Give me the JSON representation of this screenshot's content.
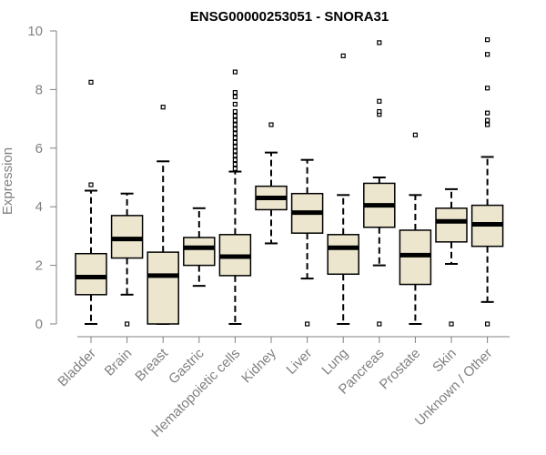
{
  "chart_data": {
    "type": "boxplot",
    "title": "ENSG00000253051 - SNORA31",
    "xlabel": "",
    "ylabel": "Expression",
    "ylim": [
      0,
      10
    ],
    "yticks": [
      "0",
      "2",
      "4",
      "6",
      "8",
      "10"
    ],
    "grid": false,
    "box_color": "#EDE6CF",
    "categories": [
      "Bladder",
      "Brain",
      "Breast",
      "Gastric",
      "Hematopoietic cells",
      "Kidney",
      "Liver",
      "Lung",
      "Pancreas",
      "Prostate",
      "Skin",
      "Unknown / Other"
    ],
    "boxes": [
      {
        "q1": 1.0,
        "median": 1.6,
        "q3": 2.4,
        "whisker_low": 0.0,
        "whisker_high": 4.55,
        "outliers": [
          4.75,
          8.25
        ]
      },
      {
        "q1": 2.25,
        "median": 2.9,
        "q3": 3.7,
        "whisker_low": 1.0,
        "whisker_high": 4.45,
        "outliers": [
          0.0
        ]
      },
      {
        "q1": 0.0,
        "median": 1.65,
        "q3": 2.45,
        "whisker_low": 0.0,
        "whisker_high": 5.55,
        "outliers": [
          7.4
        ]
      },
      {
        "q1": 2.0,
        "median": 2.6,
        "q3": 2.95,
        "whisker_low": 1.3,
        "whisker_high": 3.95,
        "outliers": []
      },
      {
        "q1": 1.65,
        "median": 2.3,
        "q3": 3.05,
        "whisker_low": 0.0,
        "whisker_high": 5.2,
        "outliers": [
          5.3,
          5.45,
          5.6,
          5.75,
          5.9,
          6.05,
          6.2,
          6.35,
          6.5,
          6.65,
          6.8,
          6.95,
          7.1,
          7.25,
          7.5,
          7.75,
          7.9,
          8.6
        ]
      },
      {
        "q1": 3.9,
        "median": 4.3,
        "q3": 4.7,
        "whisker_low": 2.75,
        "whisker_high": 5.85,
        "outliers": [
          6.8
        ]
      },
      {
        "q1": 3.1,
        "median": 3.8,
        "q3": 4.45,
        "whisker_low": 1.55,
        "whisker_high": 5.6,
        "outliers": [
          0.0
        ]
      },
      {
        "q1": 1.7,
        "median": 2.6,
        "q3": 3.05,
        "whisker_low": 0.0,
        "whisker_high": 4.4,
        "outliers": [
          9.15
        ]
      },
      {
        "q1": 3.3,
        "median": 4.05,
        "q3": 4.8,
        "whisker_low": 2.0,
        "whisker_high": 5.0,
        "outliers": [
          0.0,
          7.15,
          7.25,
          7.6,
          9.6
        ]
      },
      {
        "q1": 1.35,
        "median": 2.35,
        "q3": 3.2,
        "whisker_low": 0.0,
        "whisker_high": 4.4,
        "outliers": [
          6.45
        ]
      },
      {
        "q1": 2.8,
        "median": 3.5,
        "q3": 3.95,
        "whisker_low": 2.05,
        "whisker_high": 4.6,
        "outliers": [
          0.0
        ]
      },
      {
        "q1": 2.65,
        "median": 3.4,
        "q3": 4.05,
        "whisker_low": 0.75,
        "whisker_high": 5.7,
        "outliers": [
          0.0,
          6.8,
          6.95,
          7.2,
          8.05,
          9.2,
          9.7
        ]
      }
    ]
  }
}
